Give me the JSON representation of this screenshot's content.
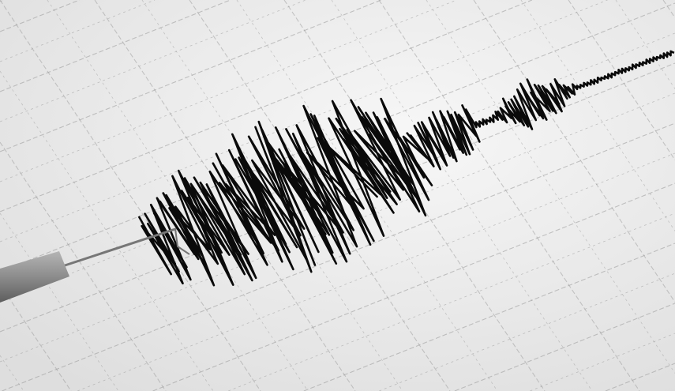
{
  "scene": {
    "subject": "seismograph",
    "paper_color": "#f2f2f2",
    "paper_shadow_color": "#d9d9d9",
    "grid_color": "#9a9a9a",
    "trace_color": "#0a0a0a",
    "needle_color": "#8a8a8a"
  },
  "icons": [
    "seismograph-paper",
    "seismic-trace",
    "seismograph-needle"
  ]
}
